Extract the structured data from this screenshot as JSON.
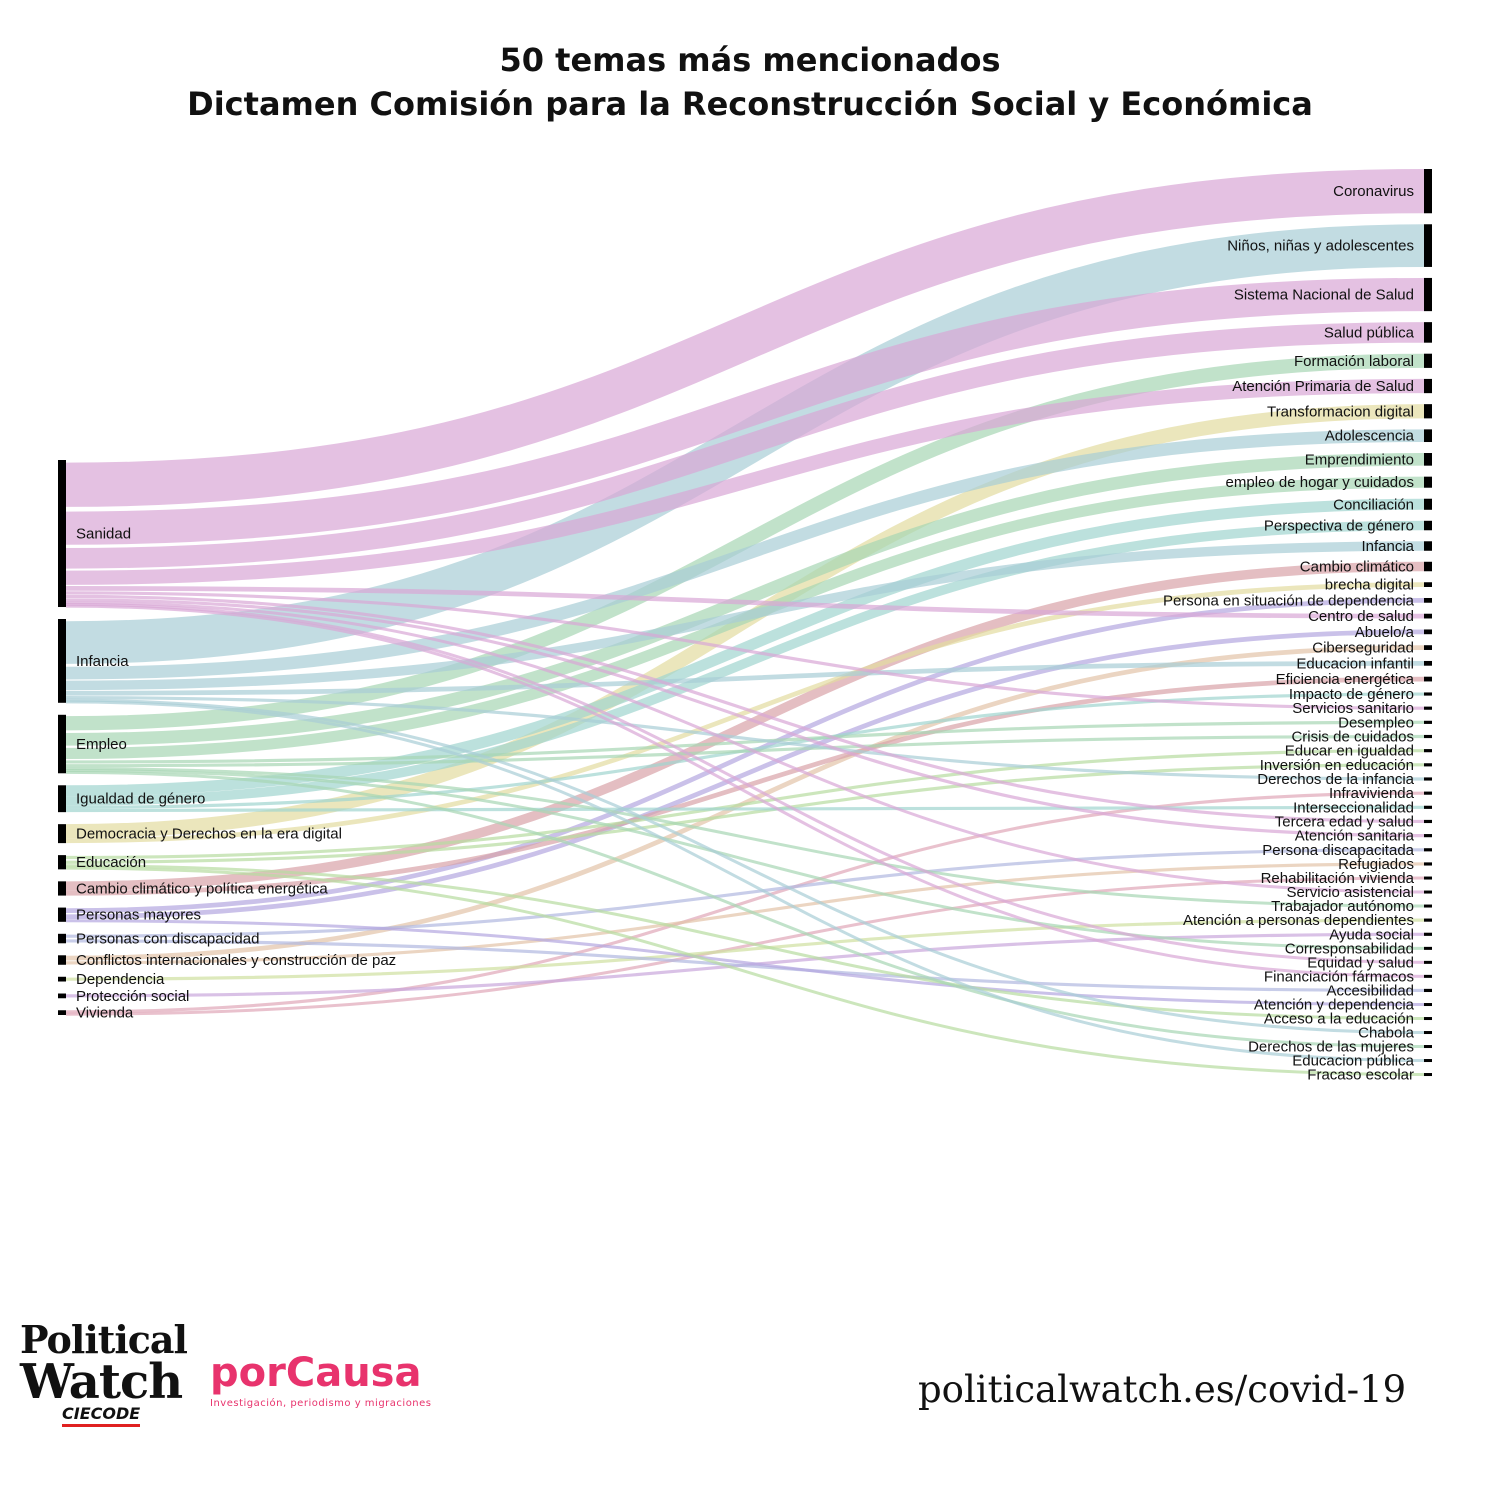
{
  "title": {
    "line1": "50 temas más mencionados",
    "line2": "Dictamen Comisión para la Reconstrucción Social y Económica"
  },
  "logos": {
    "political_watch_line1": "Political",
    "political_watch_line2": "Watch",
    "political_watch_sub": "CIECODE",
    "porcausa_name": "porCausa",
    "porcausa_tagline": "Investigación, periodismo y migraciones"
  },
  "website": "politicalwatch.es/covid-19",
  "colors": {
    "Sanidad": "#d9a6d5",
    "Infancia": "#a8cdd6",
    "Empleo": "#a7d6b4",
    "Igualdad de género": "#9fd4cf",
    "Democracia y Derechos en la era digital": "#e3dca0",
    "Educación": "#b6dba0",
    "Cambio climático y política energética": "#d9a3a8",
    "Personas mayores": "#b3a6e0",
    "Personas con discapacidad": "#b0b8e0",
    "Conflictos internacionales y construcción de paz": "#e3c3a8",
    "Dependencia": "#cfe0a0",
    "Protección social": "#c9a6dc",
    "Vivienda": "#e0a6b8"
  },
  "diagram": {
    "type": "sankey",
    "sources": [
      {
        "name": "Sanidad",
        "value": 93
      },
      {
        "name": "Infancia",
        "value": 53
      },
      {
        "name": "Empleo",
        "value": 37
      },
      {
        "name": "Igualdad de género",
        "value": 17
      },
      {
        "name": "Democracia y Derechos en la era digital",
        "value": 12
      },
      {
        "name": "Educación",
        "value": 9
      },
      {
        "name": "Cambio climático y política energética",
        "value": 9
      },
      {
        "name": "Personas mayores",
        "value": 9
      },
      {
        "name": "Personas con discapacidad",
        "value": 6
      },
      {
        "name": "Conflictos internacionales y construcción de paz",
        "value": 6
      },
      {
        "name": "Dependencia",
        "value": 3
      },
      {
        "name": "Protección social",
        "value": 3
      },
      {
        "name": "Vivienda",
        "value": 3
      }
    ],
    "targets": [
      {
        "name": "Coronavirus",
        "source": "Sanidad",
        "value": 28
      },
      {
        "name": "Niños, niñas y adolescentes",
        "source": "Infancia",
        "value": 27
      },
      {
        "name": "Sistema Nacional de Salud",
        "source": "Sanidad",
        "value": 21
      },
      {
        "name": "Salud pública",
        "source": "Sanidad",
        "value": 13
      },
      {
        "name": "Formación laboral",
        "source": "Empleo",
        "value": 9
      },
      {
        "name": "Atención Primaria de Salud",
        "source": "Sanidad",
        "value": 9
      },
      {
        "name": "Transformacion digital",
        "source": "Democracia y Derechos en la era digital",
        "value": 9
      },
      {
        "name": "Adolescencia",
        "source": "Infancia",
        "value": 8
      },
      {
        "name": "Emprendimiento",
        "source": "Empleo",
        "value": 8
      },
      {
        "name": "empleo de hogar y cuidados",
        "source": "Empleo",
        "value": 7
      },
      {
        "name": "Conciliación",
        "source": "Igualdad de género",
        "value": 7
      },
      {
        "name": "Perspectiva de género",
        "source": "Igualdad de género",
        "value": 6
      },
      {
        "name": "Infancia",
        "source": "Infancia",
        "value": 6
      },
      {
        "name": "Cambio climático",
        "source": "Cambio climático y política energética",
        "value": 6
      },
      {
        "name": "brecha digital",
        "source": "Democracia y Derechos en la era digital",
        "value": 3
      },
      {
        "name": "Persona en situación de dependencia",
        "source": "Personas mayores",
        "value": 3
      },
      {
        "name": "Centro de salud",
        "source": "Sanidad",
        "value": 3
      },
      {
        "name": "Abuelo/a",
        "source": "Personas mayores",
        "value": 3
      },
      {
        "name": "Ciberseguridad",
        "source": "Conflictos internacionales y construcción de paz",
        "value": 3
      },
      {
        "name": "Educacion infantil",
        "source": "Infancia",
        "value": 3
      },
      {
        "name": "Eficiencia energética",
        "source": "Cambio climático y política energética",
        "value": 3
      },
      {
        "name": "Impacto de género",
        "source": "Igualdad de género",
        "value": 2
      },
      {
        "name": "Servicios sanitario",
        "source": "Sanidad",
        "value": 2
      },
      {
        "name": "Desempleo",
        "source": "Empleo",
        "value": 2
      },
      {
        "name": "Crisis de cuidados",
        "source": "Empleo",
        "value": 2
      },
      {
        "name": "Educar en igualdad",
        "source": "Educación",
        "value": 2
      },
      {
        "name": "Inversión en educación",
        "source": "Educación",
        "value": 2
      },
      {
        "name": "Derechos de la infancia",
        "source": "Infancia",
        "value": 2
      },
      {
        "name": "Infravivienda",
        "source": "Vivienda",
        "value": 2
      },
      {
        "name": "Interseccionalidad",
        "source": "Igualdad de género",
        "value": 2
      },
      {
        "name": "Tercera edad y salud",
        "source": "Sanidad",
        "value": 2
      },
      {
        "name": "Atención sanitaria",
        "source": "Sanidad",
        "value": 2
      },
      {
        "name": "Persona discapacitada",
        "source": "Personas con discapacidad",
        "value": 2
      },
      {
        "name": "Refugiados",
        "source": "Conflictos internacionales y construcción de paz",
        "value": 2
      },
      {
        "name": "Rehabilitación vivienda",
        "source": "Vivienda",
        "value": 1
      },
      {
        "name": "Servicio asistencial",
        "source": "Sanidad",
        "value": 1
      },
      {
        "name": "Trabajador autónomo",
        "source": "Empleo",
        "value": 1
      },
      {
        "name": "Atención a personas dependientes",
        "source": "Dependencia",
        "value": 2
      },
      {
        "name": "Ayuda social",
        "source": "Protección social",
        "value": 2
      },
      {
        "name": "Corresponsabilidad",
        "source": "Empleo",
        "value": 1
      },
      {
        "name": "Equidad y salud",
        "source": "Sanidad",
        "value": 1
      },
      {
        "name": "Financiación fármacos",
        "source": "Sanidad",
        "value": 1
      },
      {
        "name": "Accesibilidad",
        "source": "Personas con discapacidad",
        "value": 2
      },
      {
        "name": "Atención y dependencia",
        "source": "Personas mayores",
        "value": 1
      },
      {
        "name": "Acceso a la educación",
        "source": "Educación",
        "value": 1
      },
      {
        "name": "Chabola",
        "source": "Infancia",
        "value": 1
      },
      {
        "name": "Derechos de las mujeres",
        "source": "Empleo",
        "value": 1
      },
      {
        "name": "Educacion pública",
        "source": "Infancia",
        "value": 1
      },
      {
        "name": "Fracaso escolar",
        "source": "Educación",
        "value": 1
      }
    ]
  }
}
